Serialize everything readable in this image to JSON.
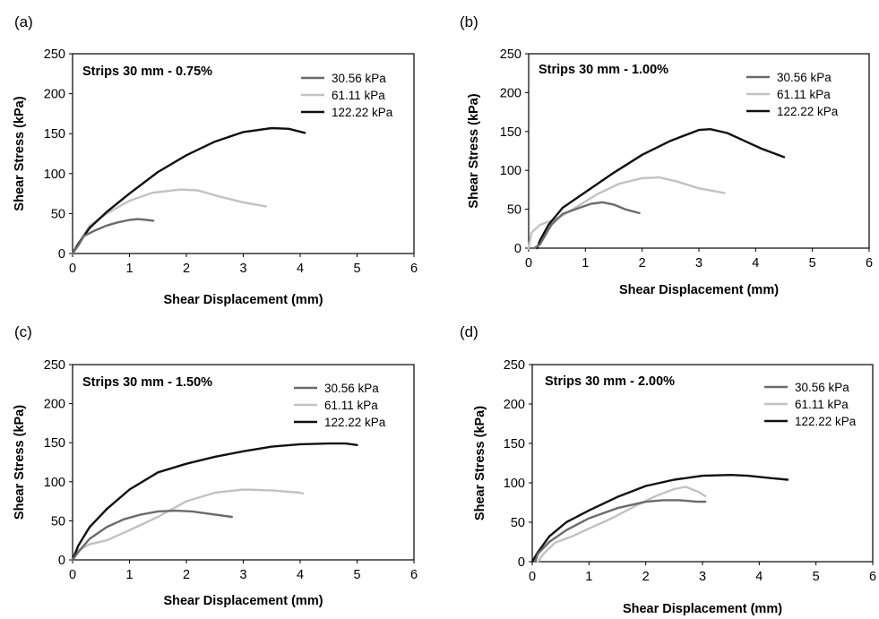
{
  "colors": {
    "30.56 kPa": "#6b6b6b",
    "61.11 kPa": "#c2c2c2",
    "122.22 kPa": "#111111"
  },
  "chart_data": [
    {
      "type": "line",
      "panel_label": "(a)",
      "title": "Strips 30 mm - 0.75%",
      "xlabel": "Shear Displacement (mm)",
      "ylabel": "Shear Stress (kPa)",
      "xlim": [
        0,
        6
      ],
      "ylim": [
        0,
        250
      ],
      "xticks": [
        "0",
        "1",
        "2",
        "3",
        "4",
        "5",
        "6"
      ],
      "yticks": [
        "0",
        "50",
        "100",
        "150",
        "200",
        "250"
      ],
      "grid": false,
      "legend_position": "top-right",
      "series": [
        {
          "name": "30.56 kPa",
          "x": [
            0,
            0.1,
            0.2,
            0.4,
            0.6,
            0.8,
            1.0,
            1.15,
            1.3,
            1.42
          ],
          "y": [
            0,
            10,
            22,
            29,
            35,
            39,
            42,
            43,
            42,
            41
          ]
        },
        {
          "name": "61.11 kPa",
          "x": [
            0,
            0.1,
            0.3,
            0.6,
            1.0,
            1.4,
            1.9,
            2.2,
            2.6,
            3.0,
            3.4
          ],
          "y": [
            0,
            12,
            35,
            50,
            66,
            76,
            80,
            79,
            71,
            64,
            59
          ]
        },
        {
          "name": "122.22 kPa",
          "x": [
            0,
            0.1,
            0.3,
            0.6,
            1.0,
            1.5,
            2.0,
            2.5,
            3.0,
            3.5,
            3.8,
            4.08
          ],
          "y": [
            0,
            12,
            32,
            52,
            75,
            102,
            123,
            140,
            152,
            157,
            156,
            151
          ]
        }
      ]
    },
    {
      "type": "line",
      "panel_label": "(b)",
      "title": "Strips 30 mm - 1.00%",
      "xlabel": "Shear Displacement (mm)",
      "ylabel": "Shear Stress (kPa)",
      "xlim": [
        0,
        6
      ],
      "ylim": [
        0,
        250
      ],
      "xticks": [
        "0",
        "1",
        "2",
        "3",
        "4",
        "5",
        "6"
      ],
      "yticks": [
        "0",
        "50",
        "100",
        "150",
        "200",
        "250"
      ],
      "grid": false,
      "legend_position": "top-right",
      "series": [
        {
          "name": "30.56 kPa",
          "x": [
            0.1,
            0.2,
            0.4,
            0.6,
            0.9,
            1.1,
            1.3,
            1.5,
            1.7,
            1.95
          ],
          "y": [
            0,
            5,
            30,
            44,
            52,
            57,
            59,
            56,
            50,
            45
          ]
        },
        {
          "name": "61.11 kPa",
          "x": [
            0,
            0.05,
            0.2,
            0.5,
            0.8,
            1.2,
            1.6,
            2.0,
            2.3,
            2.6,
            3.0,
            3.45
          ],
          "y": [
            0,
            20,
            30,
            38,
            51,
            69,
            83,
            90,
            91,
            86,
            77,
            71
          ]
        },
        {
          "name": "122.22 kPa",
          "x": [
            0.15,
            0.2,
            0.35,
            0.6,
            1.0,
            1.5,
            2.0,
            2.5,
            3.0,
            3.2,
            3.5,
            3.8,
            4.1,
            4.5
          ],
          "y": [
            0,
            10,
            30,
            52,
            72,
            97,
            120,
            138,
            152,
            153,
            148,
            138,
            128,
            117
          ]
        }
      ]
    },
    {
      "type": "line",
      "panel_label": "(c)",
      "title": "Strips 30 mm - 1.50%",
      "xlabel": "Shear Displacement (mm)",
      "ylabel": "Shear Stress (kPa)",
      "xlim": [
        0,
        6
      ],
      "ylim": [
        0,
        250
      ],
      "xticks": [
        "0",
        "1",
        "2",
        "3",
        "4",
        "5",
        "6"
      ],
      "yticks": [
        "0",
        "50",
        "100",
        "150",
        "200",
        "250"
      ],
      "grid": false,
      "legend_position": "top-right",
      "series": [
        {
          "name": "30.56 kPa",
          "x": [
            0,
            0.1,
            0.3,
            0.6,
            0.9,
            1.2,
            1.5,
            1.8,
            2.1,
            2.4,
            2.8
          ],
          "y": [
            0,
            10,
            27,
            42,
            52,
            58,
            62,
            63,
            62,
            59,
            55
          ]
        },
        {
          "name": "61.11 kPa",
          "x": [
            0,
            0.1,
            0.3,
            0.6,
            1.0,
            1.5,
            2.0,
            2.5,
            3.0,
            3.5,
            4.0,
            4.05
          ],
          "y": [
            0,
            12,
            20,
            25,
            38,
            55,
            75,
            86,
            90,
            89,
            86,
            85
          ]
        },
        {
          "name": "122.22 kPa",
          "x": [
            0,
            0.1,
            0.3,
            0.6,
            1.0,
            1.5,
            2.0,
            2.5,
            3.0,
            3.5,
            4.0,
            4.5,
            4.8,
            5.0
          ],
          "y": [
            0,
            18,
            42,
            65,
            90,
            112,
            123,
            132,
            139,
            145,
            148,
            149,
            149,
            147
          ]
        }
      ]
    },
    {
      "type": "line",
      "panel_label": "(d)",
      "title": "Strips 30 mm - 2.00%",
      "xlabel": "Shear Displacement (mm)",
      "ylabel": "Shear Stress (kPa)",
      "xlim": [
        0,
        6
      ],
      "ylim": [
        0,
        250
      ],
      "xticks": [
        "0",
        "1",
        "2",
        "3",
        "4",
        "5",
        "6"
      ],
      "yticks": [
        "0",
        "50",
        "100",
        "150",
        "200",
        "250"
      ],
      "grid": false,
      "legend_position": "top-right",
      "series": [
        {
          "name": "30.56 kPa",
          "x": [
            0.05,
            0.1,
            0.3,
            0.6,
            1.0,
            1.5,
            2.0,
            2.3,
            2.6,
            2.9,
            3.05
          ],
          "y": [
            0,
            10,
            25,
            40,
            55,
            68,
            76,
            78,
            78,
            76,
            76
          ]
        },
        {
          "name": "61.11 kPa",
          "x": [
            0.1,
            0.2,
            0.4,
            0.7,
            1.0,
            1.4,
            1.8,
            2.2,
            2.5,
            2.7,
            2.95,
            3.05
          ],
          "y": [
            0,
            10,
            24,
            32,
            42,
            55,
            70,
            84,
            92,
            95,
            88,
            83
          ]
        },
        {
          "name": "122.22 kPa",
          "x": [
            0,
            0.1,
            0.3,
            0.6,
            1.0,
            1.5,
            2.0,
            2.5,
            3.0,
            3.5,
            3.8,
            4.2,
            4.5
          ],
          "y": [
            0,
            12,
            32,
            50,
            65,
            82,
            96,
            104,
            109,
            110,
            109,
            106,
            104
          ]
        }
      ]
    }
  ]
}
